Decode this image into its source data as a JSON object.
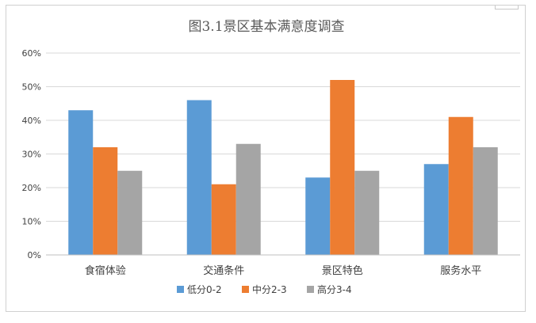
{
  "chart_data": {
    "type": "bar",
    "title": "图3.1景区基本满意度调查",
    "categories": [
      "食宿体验",
      "交通条件",
      "景区特色",
      "服务水平"
    ],
    "series": [
      {
        "name": "低分0-2",
        "values": [
          43,
          46,
          23,
          27
        ],
        "color": "#5B9BD5"
      },
      {
        "name": "中分2-3",
        "values": [
          32,
          21,
          52,
          41
        ],
        "color": "#ED7D31"
      },
      {
        "name": "高分3-4",
        "values": [
          25,
          33,
          25,
          32
        ],
        "color": "#A5A5A5"
      }
    ],
    "ylim": [
      0,
      60
    ],
    "yticks": [
      "0%",
      "10%",
      "20%",
      "30%",
      "40%",
      "50%",
      "60%"
    ],
    "ytick_values": [
      0,
      10,
      20,
      30,
      40,
      50,
      60
    ],
    "grid": true,
    "legend_position": "bottom"
  }
}
